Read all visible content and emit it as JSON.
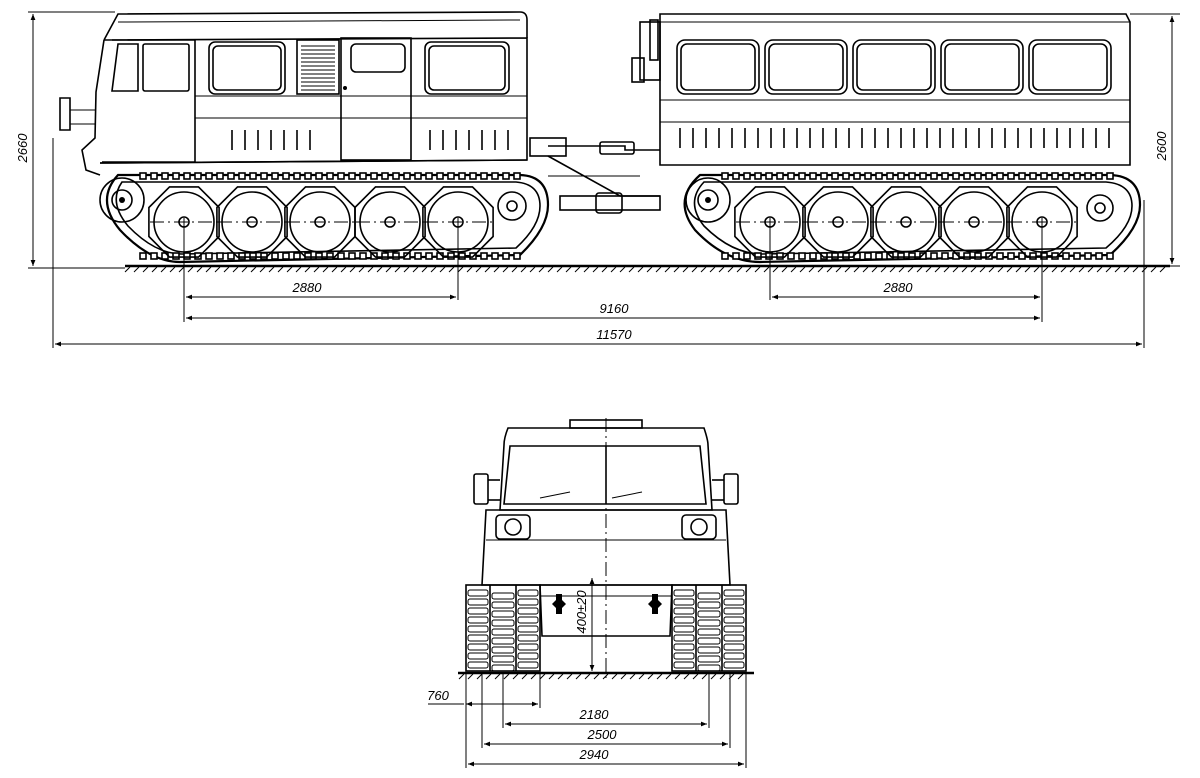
{
  "side_view": {
    "dims": {
      "height_front": "2660",
      "height_rear": "2600",
      "track_base_front": "2880",
      "track_base_rear": "2880",
      "axle_span": "9160",
      "overall_length": "11570"
    }
  },
  "front_view": {
    "dims": {
      "ground_clearance": "400±20",
      "track_width": "760",
      "track_gauge": "2180",
      "width_inner": "2500",
      "overall_width": "2940"
    }
  }
}
